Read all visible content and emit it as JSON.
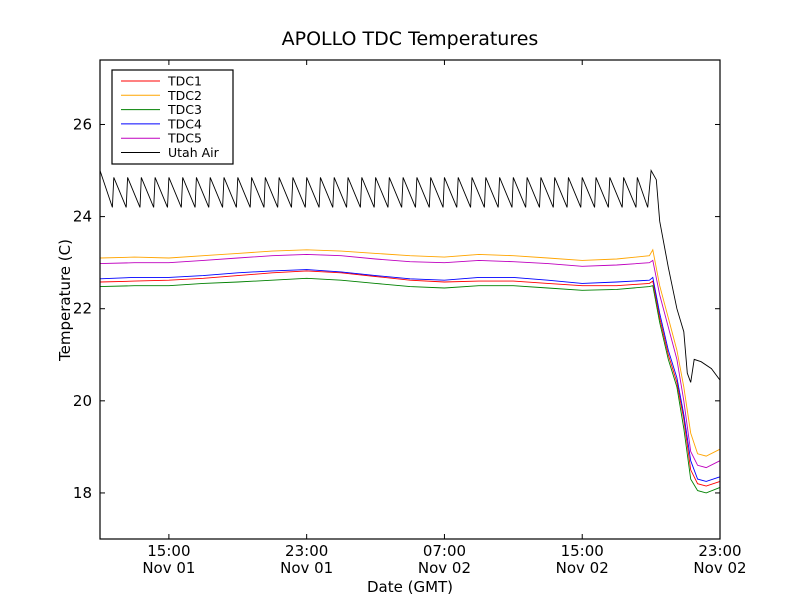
{
  "chart_data": {
    "type": "line",
    "title": "APOLLO TDC Temperatures",
    "xlabel": "Date (GMT)",
    "ylabel": "Temperature (C)",
    "xlim": [
      11.0,
      47.0
    ],
    "ylim": [
      17.0,
      27.4
    ],
    "x_unit": "hours since Nov 01 00:00 GMT",
    "yticks": [
      18,
      20,
      22,
      24,
      26
    ],
    "xticks": [
      {
        "value": 15,
        "line1": "15:00",
        "line2": "Nov 01"
      },
      {
        "value": 23,
        "line1": "23:00",
        "line2": "Nov 01"
      },
      {
        "value": 31,
        "line1": "07:00",
        "line2": "Nov 02"
      },
      {
        "value": 39,
        "line1": "15:00",
        "line2": "Nov 02"
      },
      {
        "value": 47,
        "line1": "23:00",
        "line2": "Nov 02"
      }
    ],
    "legend_position": "top-left",
    "series": [
      {
        "name": "TDC1",
        "color": "#ff0000",
        "points": [
          [
            11.0,
            22.58
          ],
          [
            13.0,
            22.6
          ],
          [
            15.0,
            22.62
          ],
          [
            17.0,
            22.66
          ],
          [
            19.0,
            22.72
          ],
          [
            21.0,
            22.78
          ],
          [
            23.0,
            22.82
          ],
          [
            25.0,
            22.78
          ],
          [
            27.0,
            22.7
          ],
          [
            29.0,
            22.62
          ],
          [
            31.0,
            22.58
          ],
          [
            33.0,
            22.6
          ],
          [
            35.0,
            22.6
          ],
          [
            37.0,
            22.55
          ],
          [
            39.0,
            22.5
          ],
          [
            41.0,
            22.5
          ],
          [
            42.9,
            22.55
          ],
          [
            43.1,
            22.6
          ],
          [
            43.5,
            21.8
          ],
          [
            44.0,
            21.0
          ],
          [
            44.5,
            20.4
          ],
          [
            44.9,
            19.6
          ],
          [
            45.3,
            18.5
          ],
          [
            45.7,
            18.2
          ],
          [
            46.2,
            18.15
          ],
          [
            47.0,
            18.25
          ]
        ]
      },
      {
        "name": "TDC2",
        "color": "#ffa500",
        "points": [
          [
            11.0,
            23.1
          ],
          [
            13.0,
            23.12
          ],
          [
            15.0,
            23.1
          ],
          [
            17.0,
            23.15
          ],
          [
            19.0,
            23.2
          ],
          [
            21.0,
            23.25
          ],
          [
            23.0,
            23.28
          ],
          [
            25.0,
            23.25
          ],
          [
            27.0,
            23.2
          ],
          [
            29.0,
            23.15
          ],
          [
            31.0,
            23.12
          ],
          [
            33.0,
            23.18
          ],
          [
            35.0,
            23.15
          ],
          [
            37.0,
            23.1
          ],
          [
            39.0,
            23.05
          ],
          [
            41.0,
            23.08
          ],
          [
            42.9,
            23.15
          ],
          [
            43.1,
            23.28
          ],
          [
            43.5,
            22.5
          ],
          [
            44.0,
            21.8
          ],
          [
            44.5,
            21.1
          ],
          [
            44.9,
            20.3
          ],
          [
            45.3,
            19.3
          ],
          [
            45.7,
            18.85
          ],
          [
            46.2,
            18.8
          ],
          [
            47.0,
            18.95
          ]
        ]
      },
      {
        "name": "TDC3",
        "color": "#008000",
        "points": [
          [
            11.0,
            22.48
          ],
          [
            13.0,
            22.5
          ],
          [
            15.0,
            22.5
          ],
          [
            17.0,
            22.55
          ],
          [
            19.0,
            22.58
          ],
          [
            21.0,
            22.62
          ],
          [
            23.0,
            22.66
          ],
          [
            25.0,
            22.62
          ],
          [
            27.0,
            22.55
          ],
          [
            29.0,
            22.48
          ],
          [
            31.0,
            22.45
          ],
          [
            33.0,
            22.5
          ],
          [
            35.0,
            22.5
          ],
          [
            37.0,
            22.45
          ],
          [
            39.0,
            22.4
          ],
          [
            41.0,
            22.42
          ],
          [
            42.9,
            22.48
          ],
          [
            43.1,
            22.5
          ],
          [
            43.5,
            21.7
          ],
          [
            44.0,
            20.9
          ],
          [
            44.5,
            20.3
          ],
          [
            44.9,
            19.4
          ],
          [
            45.3,
            18.3
          ],
          [
            45.7,
            18.05
          ],
          [
            46.2,
            18.0
          ],
          [
            47.0,
            18.12
          ]
        ]
      },
      {
        "name": "TDC4",
        "color": "#0000ff",
        "points": [
          [
            11.0,
            22.65
          ],
          [
            13.0,
            22.68
          ],
          [
            15.0,
            22.68
          ],
          [
            17.0,
            22.72
          ],
          [
            19.0,
            22.78
          ],
          [
            21.0,
            22.82
          ],
          [
            23.0,
            22.85
          ],
          [
            25.0,
            22.8
          ],
          [
            27.0,
            22.72
          ],
          [
            29.0,
            22.65
          ],
          [
            31.0,
            22.62
          ],
          [
            33.0,
            22.68
          ],
          [
            35.0,
            22.68
          ],
          [
            37.0,
            22.62
          ],
          [
            39.0,
            22.55
          ],
          [
            41.0,
            22.58
          ],
          [
            42.9,
            22.62
          ],
          [
            43.1,
            22.68
          ],
          [
            43.5,
            21.9
          ],
          [
            44.0,
            21.1
          ],
          [
            44.5,
            20.5
          ],
          [
            44.9,
            19.7
          ],
          [
            45.3,
            18.7
          ],
          [
            45.7,
            18.3
          ],
          [
            46.2,
            18.25
          ],
          [
            47.0,
            18.35
          ]
        ]
      },
      {
        "name": "TDC5",
        "color": "#bf00bf",
        "points": [
          [
            11.0,
            22.98
          ],
          [
            13.0,
            23.0
          ],
          [
            15.0,
            23.0
          ],
          [
            17.0,
            23.05
          ],
          [
            19.0,
            23.1
          ],
          [
            21.0,
            23.15
          ],
          [
            23.0,
            23.18
          ],
          [
            25.0,
            23.15
          ],
          [
            27.0,
            23.08
          ],
          [
            29.0,
            23.02
          ],
          [
            31.0,
            23.0
          ],
          [
            33.0,
            23.05
          ],
          [
            35.0,
            23.02
          ],
          [
            37.0,
            22.98
          ],
          [
            39.0,
            22.92
          ],
          [
            41.0,
            22.95
          ],
          [
            42.9,
            23.0
          ],
          [
            43.1,
            23.05
          ],
          [
            43.5,
            22.3
          ],
          [
            44.0,
            21.6
          ],
          [
            44.5,
            20.9
          ],
          [
            44.9,
            20.0
          ],
          [
            45.3,
            18.9
          ],
          [
            45.7,
            18.6
          ],
          [
            46.2,
            18.55
          ],
          [
            47.0,
            18.7
          ]
        ]
      },
      {
        "name": "Utah Air",
        "color": "#000000",
        "sawtooth": {
          "start": 11.0,
          "end": 42.8,
          "period": 0.8,
          "low": 24.2,
          "high": 24.85,
          "first_peak": 25.0,
          "tall_peaks": [
            [
              11.5,
              25.1
            ],
            [
              28.5,
              25.1
            ],
            [
              29.3,
              25.1
            ],
            [
              30.1,
              25.05
            ],
            [
              30.9,
              25.0
            ]
          ],
          "dip": [
            [
              28.0,
              24.15
            ]
          ]
        },
        "points": [
          [
            42.8,
            24.2
          ],
          [
            43.0,
            25.0
          ],
          [
            43.3,
            24.8
          ],
          [
            43.5,
            23.9
          ],
          [
            44.0,
            22.9
          ],
          [
            44.5,
            22.0
          ],
          [
            44.9,
            21.5
          ],
          [
            45.1,
            20.6
          ],
          [
            45.3,
            20.4
          ],
          [
            45.5,
            20.9
          ],
          [
            45.9,
            20.85
          ],
          [
            46.5,
            20.7
          ],
          [
            47.0,
            20.45
          ]
        ]
      }
    ]
  }
}
